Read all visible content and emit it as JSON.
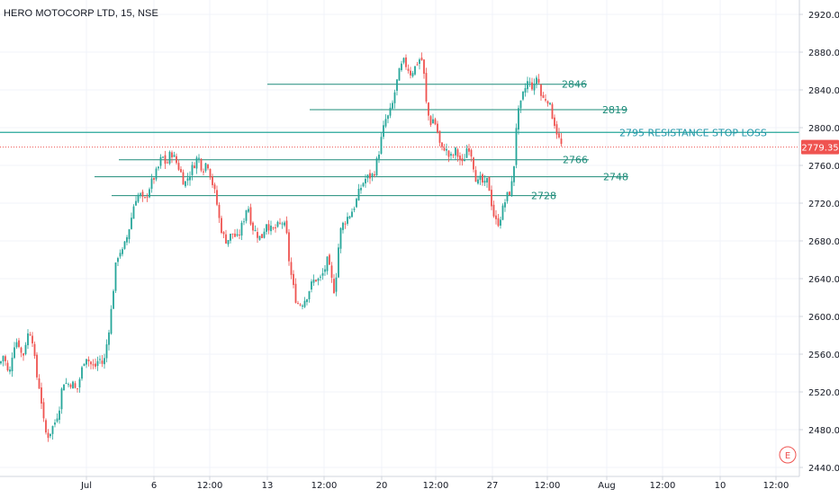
{
  "header": {
    "title": "HERO MOTOCORP LTD, 15, NSE"
  },
  "colors": {
    "up": "#26a69a",
    "down": "#ef5350",
    "level_line": "#1e8c7a",
    "resistance_line": "#26a69a",
    "resistance_text": "#2196a8",
    "price_line": "#ef5350",
    "price_badge": "#ef5350",
    "axis_text": "#131722",
    "grid": "#f0f3fa",
    "axis_border": "#d1d4dc"
  },
  "last_price": {
    "value": 2779.35,
    "label": "2779.35"
  },
  "corner_badge": {
    "label": "E",
    "icon": "earnings-icon"
  },
  "chart_data": {
    "type": "candlestick",
    "title": "HERO MOTOCORP LTD, 15, NSE",
    "interval": "15",
    "exchange": "NSE",
    "y_range": [
      2430,
      2935
    ],
    "y_ticks": [
      2440,
      2480,
      2520,
      2560,
      2600,
      2640,
      2680,
      2720,
      2760,
      2800,
      2840,
      2880,
      2920
    ],
    "y_tick_labels": [
      "2440.00",
      "2480.00",
      "2520.00",
      "2560.00",
      "2600.00",
      "2640.00",
      "2680.00",
      "2720.00",
      "2760.00",
      "2800.00",
      "2840.00",
      "2880.00",
      "2920.00"
    ],
    "x_tick_labels": [
      "Jul",
      "6",
      "12:00",
      "13",
      "12:00",
      "20",
      "12:00",
      "27",
      "12:00",
      "Aug",
      "12:00",
      "10",
      "12:00"
    ],
    "grid": true,
    "price_path": [
      [
        0,
        2550
      ],
      [
        4,
        2560
      ],
      [
        10,
        2535
      ],
      [
        15,
        2570
      ],
      [
        20,
        2575
      ],
      [
        25,
        2555
      ],
      [
        30,
        2580
      ],
      [
        35,
        2585
      ],
      [
        40,
        2540
      ],
      [
        45,
        2520
      ],
      [
        48,
        2490
      ],
      [
        52,
        2472
      ],
      [
        56,
        2478
      ],
      [
        62,
        2490
      ],
      [
        66,
        2505
      ],
      [
        70,
        2532
      ],
      [
        75,
        2528
      ],
      [
        80,
        2530
      ],
      [
        85,
        2520
      ],
      [
        90,
        2540
      ],
      [
        95,
        2560
      ],
      [
        100,
        2550
      ],
      [
        105,
        2545
      ],
      [
        110,
        2556
      ],
      [
        115,
        2548
      ],
      [
        120,
        2580
      ],
      [
        124,
        2610
      ],
      [
        128,
        2650
      ],
      [
        132,
        2670
      ],
      [
        136,
        2668
      ],
      [
        140,
        2680
      ],
      [
        145,
        2700
      ],
      [
        150,
        2725
      ],
      [
        155,
        2730
      ],
      [
        160,
        2720
      ],
      [
        165,
        2735
      ],
      [
        170,
        2745
      ],
      [
        175,
        2755
      ],
      [
        180,
        2770
      ],
      [
        185,
        2760
      ],
      [
        190,
        2775
      ],
      [
        195,
        2765
      ],
      [
        200,
        2755
      ],
      [
        205,
        2740
      ],
      [
        210,
        2750
      ],
      [
        215,
        2760
      ],
      [
        220,
        2770
      ],
      [
        225,
        2755
      ],
      [
        230,
        2765
      ],
      [
        235,
        2745
      ],
      [
        240,
        2725
      ],
      [
        244,
        2700
      ],
      [
        248,
        2685
      ],
      [
        252,
        2680
      ],
      [
        258,
        2688
      ],
      [
        264,
        2682
      ],
      [
        270,
        2700
      ],
      [
        275,
        2720
      ],
      [
        280,
        2695
      ],
      [
        285,
        2688
      ],
      [
        290,
        2682
      ],
      [
        296,
        2700
      ],
      [
        302,
        2690
      ],
      [
        308,
        2695
      ],
      [
        314,
        2700
      ],
      [
        318,
        2690
      ],
      [
        321,
        2660
      ],
      [
        324,
        2640
      ],
      [
        328,
        2620
      ],
      [
        332,
        2612
      ],
      [
        336,
        2615
      ],
      [
        340,
        2620
      ],
      [
        345,
        2632
      ],
      [
        350,
        2640
      ],
      [
        355,
        2638
      ],
      [
        360,
        2648
      ],
      [
        364,
        2660
      ],
      [
        368,
        2640
      ],
      [
        372,
        2625
      ],
      [
        375,
        2665
      ],
      [
        378,
        2690
      ],
      [
        382,
        2700
      ],
      [
        386,
        2705
      ],
      [
        390,
        2710
      ],
      [
        395,
        2720
      ],
      [
        400,
        2735
      ],
      [
        405,
        2745
      ],
      [
        410,
        2748
      ],
      [
        415,
        2750
      ],
      [
        420,
        2770
      ],
      [
        424,
        2790
      ],
      [
        428,
        2808
      ],
      [
        432,
        2812
      ],
      [
        436,
        2825
      ],
      [
        440,
        2845
      ],
      [
        444,
        2860
      ],
      [
        448,
        2870
      ],
      [
        452,
        2865
      ],
      [
        456,
        2858
      ],
      [
        460,
        2862
      ],
      [
        464,
        2870
      ],
      [
        468,
        2875
      ],
      [
        471,
        2855
      ],
      [
        474,
        2820
      ],
      [
        478,
        2805
      ],
      [
        482,
        2810
      ],
      [
        486,
        2795
      ],
      [
        490,
        2775
      ],
      [
        494,
        2780
      ],
      [
        498,
        2770
      ],
      [
        502,
        2768
      ],
      [
        506,
        2775
      ],
      [
        510,
        2768
      ],
      [
        514,
        2760
      ],
      [
        518,
        2778
      ],
      [
        522,
        2780
      ],
      [
        526,
        2760
      ],
      [
        530,
        2740
      ],
      [
        534,
        2745
      ],
      [
        538,
        2738
      ],
      [
        542,
        2745
      ],
      [
        546,
        2720
      ],
      [
        550,
        2700
      ],
      [
        554,
        2700
      ],
      [
        558,
        2712
      ],
      [
        562,
        2725
      ],
      [
        566,
        2732
      ],
      [
        570,
        2745
      ],
      [
        574,
        2810
      ],
      [
        578,
        2822
      ],
      [
        582,
        2838
      ],
      [
        586,
        2848
      ],
      [
        590,
        2845
      ],
      [
        594,
        2842
      ],
      [
        597,
        2860
      ],
      [
        600,
        2835
      ],
      [
        604,
        2830
      ],
      [
        608,
        2832
      ],
      [
        612,
        2818
      ],
      [
        616,
        2805
      ],
      [
        620,
        2790
      ],
      [
        624,
        2780
      ]
    ],
    "levels": [
      {
        "value": 2846,
        "label": "2846"
      },
      {
        "value": 2819,
        "label": "2819"
      },
      {
        "value": 2795,
        "label": "2795 RESISTANCE STOP LOSS"
      },
      {
        "value": 2766,
        "label": "2766"
      },
      {
        "value": 2748,
        "label": "2748"
      },
      {
        "value": 2728,
        "label": "2728"
      }
    ]
  }
}
